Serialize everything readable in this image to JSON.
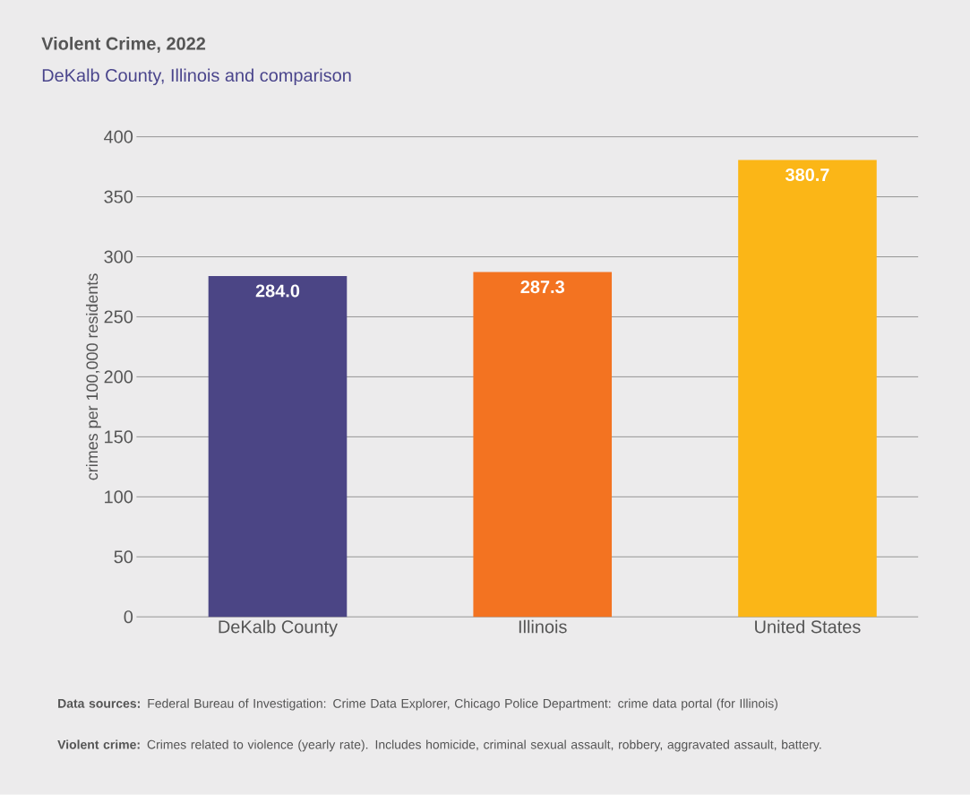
{
  "chart_data": {
    "type": "bar",
    "title": "Violent Crime, 2022",
    "subtitle": "DeKalb County, Illinois and comparison",
    "ylabel": "crimes per 100,000 residents",
    "categories": [
      "DeKalb County",
      "Illinois",
      "United States"
    ],
    "values": [
      284.0,
      287.3,
      380.7
    ],
    "colors": [
      "#4b4585",
      "#f37321",
      "#fbb617"
    ],
    "value_labels": [
      "284.0",
      "287.3",
      "380.7"
    ],
    "ylim": [
      0,
      400
    ],
    "yticks": [
      0,
      50,
      100,
      150,
      200,
      250,
      300,
      350,
      400
    ],
    "grid": "y",
    "annotations": [
      "**Data sources:** Federal Bureau of Investigation: Crime Data Explorer, Chicago Police Department: crime data portal (for Illinois)",
      "**Violent crime:** Crimes related to violence (yearly rate). Includes homicide, criminal sexual assault, robbery, aggravated assault, battery."
    ]
  }
}
